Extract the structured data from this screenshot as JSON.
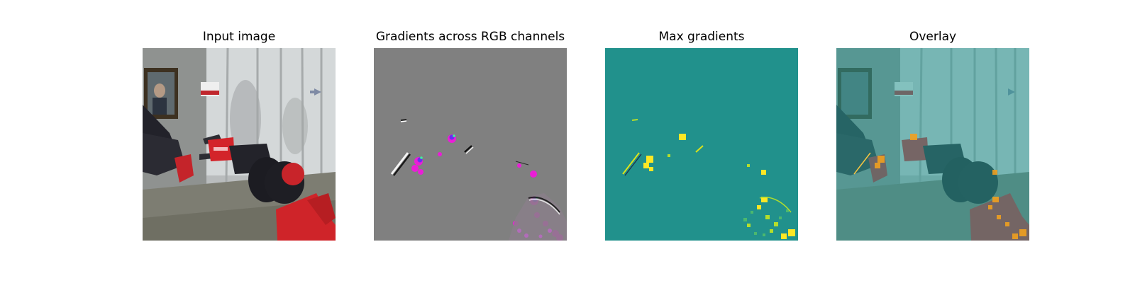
{
  "panels": [
    {
      "title": "Input image"
    },
    {
      "title": "Gradients across RGB channels"
    },
    {
      "title": "Max gradients"
    },
    {
      "title": "Overlay"
    }
  ],
  "colors": {
    "gradient_background": "#808080",
    "max_gradient_background": "#21918c",
    "max_gradient_highlight": "#fde725",
    "overlay_tint": "#4fb3ac",
    "robot_red": "#d3242a",
    "robot_black": "#23232a"
  }
}
